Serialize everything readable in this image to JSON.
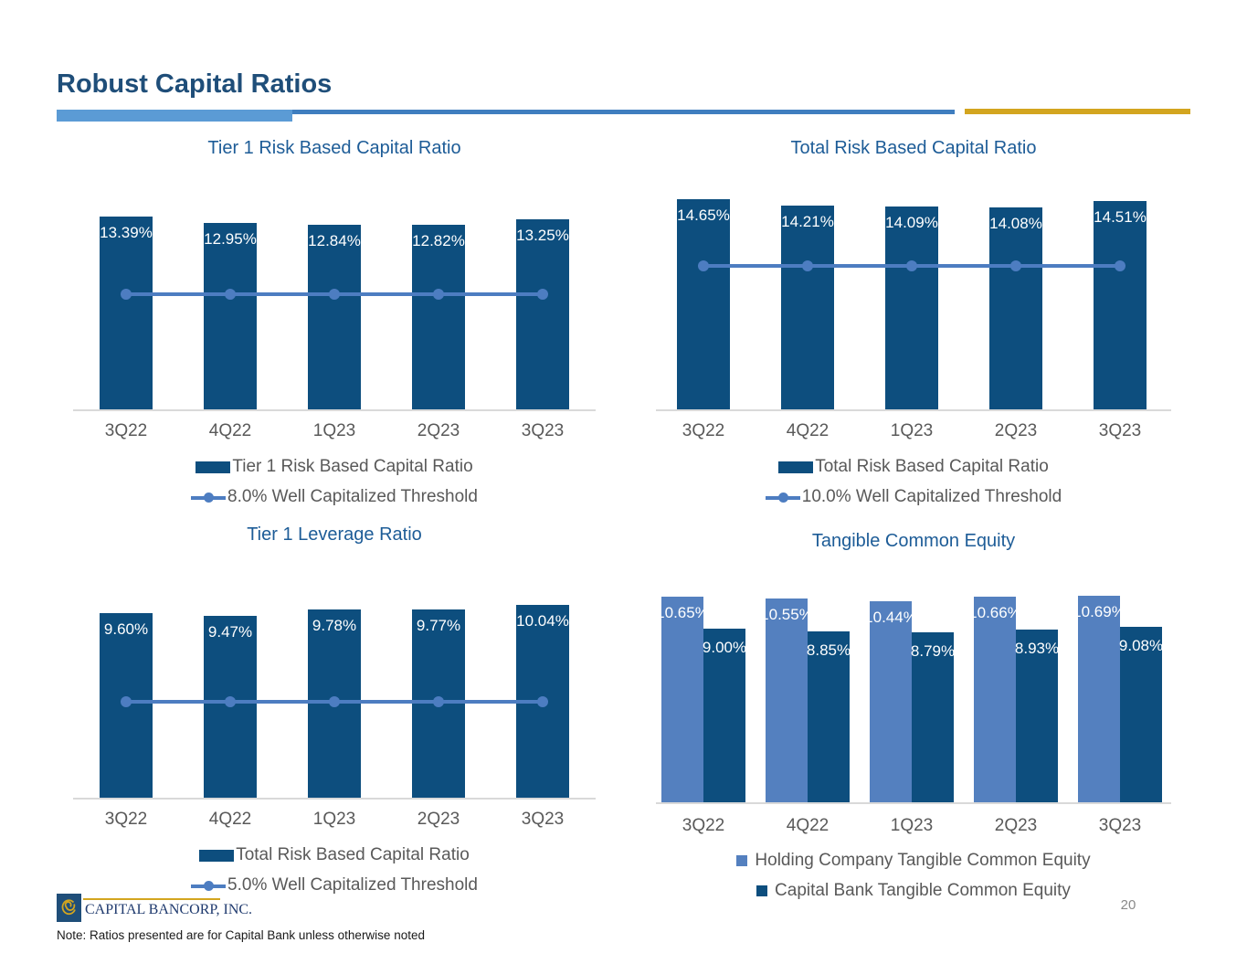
{
  "header": {
    "title": "Robust Capital Ratios"
  },
  "footer": {
    "logo_text": "CAPITAL BANCORP, INC.",
    "note": "Note: Ratios presented are for Capital Bank unless otherwise noted",
    "page_number": "20"
  },
  "colors": {
    "navy_bar": "#0d4e7e",
    "light_bar": "#5480bf",
    "threshold_line": "#4d7dc1",
    "slide_title": "#1f4e79",
    "chart_title": "#1d5c97",
    "axis_text": "#595959",
    "accent_light_blue": "#5b9bd5",
    "accent_blue": "#3f7ebf",
    "accent_gold": "#d3a51f",
    "baseline_gray": "#d9d9d9"
  },
  "chart_data": [
    {
      "id": "tier1",
      "type": "bar",
      "title": "Tier 1 Risk Based Capital Ratio",
      "categories": [
        "3Q22",
        "4Q22",
        "1Q23",
        "2Q23",
        "3Q23"
      ],
      "values": [
        13.39,
        12.95,
        12.84,
        12.82,
        13.25
      ],
      "data_labels": [
        "13.39%",
        "12.95%",
        "12.84%",
        "12.82%",
        "13.25%"
      ],
      "ylim": [
        0,
        18
      ],
      "grid": false,
      "legend_position": "bottom",
      "legend_bar_label": "Tier 1 Risk Based Capital Ratio",
      "threshold": {
        "value": 8.0,
        "label": "8.0% Well Capitalized Threshold"
      }
    },
    {
      "id": "total",
      "type": "bar",
      "title": "Total Risk Based Capital Ratio",
      "categories": [
        "3Q22",
        "4Q22",
        "1Q23",
        "2Q23",
        "3Q23"
      ],
      "values": [
        14.65,
        14.21,
        14.09,
        14.08,
        14.51
      ],
      "data_labels": [
        "14.65%",
        "14.21%",
        "14.09%",
        "14.08%",
        "14.51%"
      ],
      "ylim": [
        0,
        18
      ],
      "grid": false,
      "legend_position": "bottom",
      "legend_bar_label": "Total Risk Based Capital Ratio",
      "threshold": {
        "value": 10.0,
        "label": "10.0% Well Capitalized Threshold"
      }
    },
    {
      "id": "leverage",
      "type": "bar",
      "title": "Tier 1 Leverage Ratio",
      "categories": [
        "3Q22",
        "4Q22",
        "1Q23",
        "2Q23",
        "3Q23"
      ],
      "values": [
        9.6,
        9.47,
        9.78,
        9.77,
        10.04
      ],
      "data_labels": [
        "9.60%",
        "9.47%",
        "9.78%",
        "9.77%",
        "10.04%"
      ],
      "ylim": [
        0,
        13.5
      ],
      "grid": false,
      "legend_position": "bottom",
      "legend_bar_label": "Total Risk Based Capital Ratio",
      "threshold": {
        "value": 5.0,
        "label": "5.0% Well Capitalized Threshold"
      }
    },
    {
      "id": "tce",
      "type": "bar",
      "title": "Tangible Common Equity",
      "categories": [
        "3Q22",
        "4Q22",
        "1Q23",
        "2Q23",
        "3Q23"
      ],
      "ylim": [
        0,
        13.5
      ],
      "grid": false,
      "legend_position": "bottom",
      "series": [
        {
          "name": "Holding Company Tangible Common Equity",
          "color_key": "light_bar",
          "values": [
            10.65,
            10.55,
            10.44,
            10.66,
            10.69
          ],
          "data_labels": [
            "10.65%",
            "10.55%",
            "10.44%",
            "10.66%",
            "10.69%"
          ]
        },
        {
          "name": "Capital Bank Tangible Common Equity",
          "color_key": "navy_bar",
          "values": [
            9.0,
            8.85,
            8.79,
            8.93,
            9.08
          ],
          "data_labels": [
            "9.00%",
            "8.85%",
            "8.79%",
            "8.93%",
            "9.08%"
          ]
        }
      ]
    }
  ]
}
